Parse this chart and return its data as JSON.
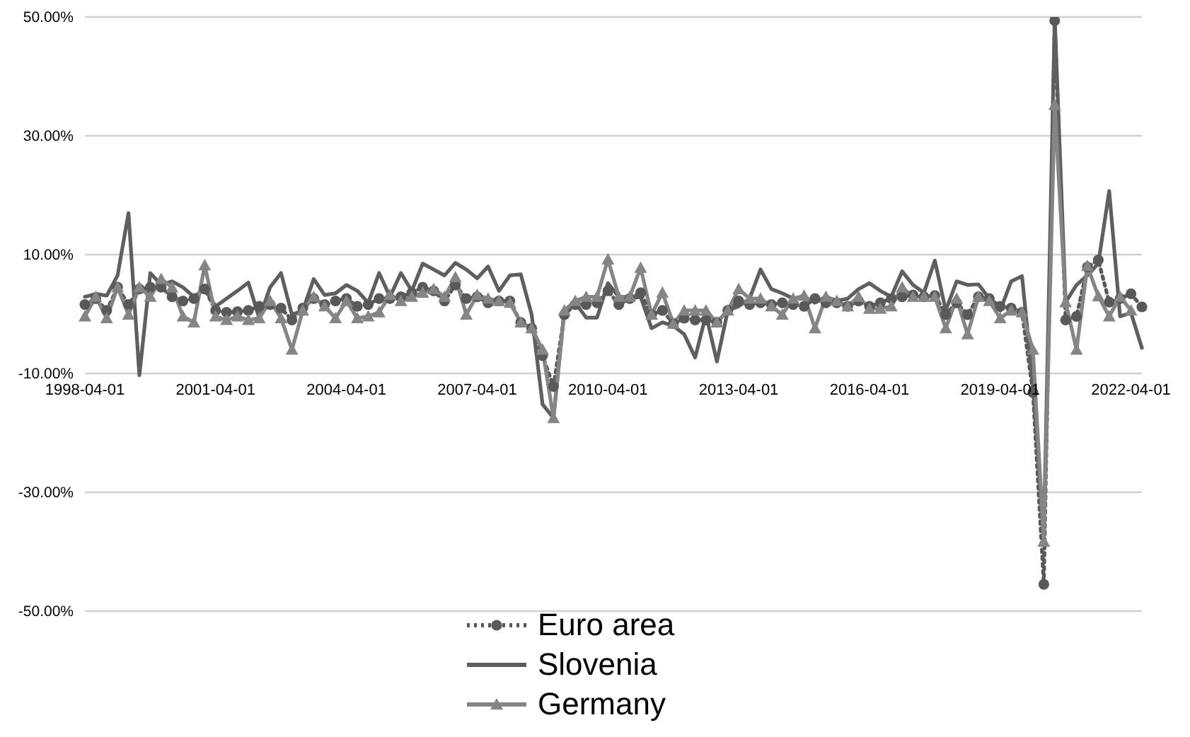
{
  "chart_data": {
    "type": "line",
    "categories": [
      "1998-04-01",
      null,
      null,
      null,
      null,
      null,
      null,
      null,
      null,
      null,
      null,
      null,
      "2001-04-01",
      null,
      null,
      null,
      null,
      null,
      null,
      null,
      null,
      null,
      null,
      null,
      "2004-04-01",
      null,
      null,
      null,
      null,
      null,
      null,
      null,
      null,
      null,
      null,
      null,
      "2007-04-01",
      null,
      null,
      null,
      null,
      null,
      null,
      null,
      null,
      null,
      null,
      null,
      "2010-04-01",
      null,
      null,
      null,
      null,
      null,
      null,
      null,
      null,
      null,
      null,
      null,
      "2013-04-01",
      null,
      null,
      null,
      null,
      null,
      null,
      null,
      null,
      null,
      null,
      null,
      "2016-04-01",
      null,
      null,
      null,
      null,
      null,
      null,
      null,
      null,
      null,
      null,
      null,
      "2019-04-01",
      null,
      null,
      null,
      null,
      null,
      null,
      null,
      null,
      null,
      null,
      null,
      "2022-04-01",
      null
    ],
    "series": [
      {
        "name": "Euro area",
        "color": "#595959",
        "marker": "circle",
        "line_style": "dotted",
        "values": [
          1.6,
          2.6,
          0.6,
          4.5,
          1.6,
          4.2,
          4.5,
          4.5,
          2.9,
          2.2,
          2.6,
          4.2,
          0.6,
          0.3,
          0.4,
          0.6,
          1.3,
          1.6,
          1.0,
          -1.0,
          1.0,
          2.6,
          1.6,
          2.2,
          2.6,
          1.3,
          1.6,
          2.6,
          2.6,
          2.9,
          3.6,
          4.5,
          3.9,
          2.2,
          4.9,
          2.6,
          2.9,
          1.9,
          2.2,
          2.2,
          -1.4,
          -2.4,
          -7.0,
          -12.2,
          -0.1,
          1.6,
          1.6,
          1.9,
          3.9,
          1.6,
          2.6,
          3.6,
          -0.1,
          0.6,
          -1.6,
          -0.7,
          -1.0,
          -1.0,
          -1.4,
          0.6,
          2.2,
          1.6,
          1.9,
          1.6,
          1.9,
          1.6,
          1.3,
          2.6,
          1.9,
          1.9,
          1.3,
          2.2,
          1.3,
          1.9,
          2.6,
          2.9,
          3.2,
          2.9,
          3.1,
          -0.1,
          1.9,
          -0.1,
          2.9,
          2.6,
          1.3,
          1.0,
          0.3,
          -13.2,
          -45.5,
          49.4,
          -1.0,
          -0.4,
          7.9,
          9.1,
          2.0,
          2.6,
          3.4,
          1.2
        ]
      },
      {
        "name": "Slovenia",
        "color": "#5f5f5f",
        "marker": "none",
        "line_style": "solid",
        "values": [
          2.9,
          3.4,
          3.1,
          6.5,
          17,
          -10.3,
          6.9,
          4.9,
          5.5,
          4.5,
          2.9,
          4.2,
          1.3,
          2.6,
          3.9,
          5.3,
          -0.7,
          4.5,
          6.9,
          -0.1,
          0.6,
          5.9,
          3.2,
          3.5,
          4.9,
          3.9,
          1.9,
          6.9,
          2.9,
          6.9,
          3.9,
          8.5,
          7.5,
          6.5,
          8.6,
          7.5,
          6.0,
          8.0,
          3.9,
          6.5,
          6.7,
          -0.1,
          -15.2,
          -17.5,
          0.6,
          1.9,
          -0.6,
          -0.6,
          5.2,
          2.9,
          2.6,
          2.9,
          -2.4,
          -1.4,
          -2.0,
          -3.4,
          -7.3,
          -0.1,
          -8.0,
          0.6,
          1.3,
          2.6,
          7.5,
          4.2,
          3.5,
          2.6,
          2.9,
          1.9,
          2.9,
          2.2,
          2.6,
          4.2,
          5.2,
          3.9,
          2.9,
          7.2,
          4.9,
          3.6,
          9.0,
          0.6,
          5.5,
          4.9,
          5.0,
          2.6,
          0.6,
          5.5,
          6.4,
          -12,
          -37,
          50,
          2.0,
          4.9,
          6.5,
          8.5,
          20.7,
          -0.4,
          0.2,
          -5.7
        ]
      },
      {
        "name": "Germany",
        "color": "#858585",
        "marker": "triangle",
        "line_style": "solid",
        "values": [
          -0.4,
          2.9,
          -0.7,
          4.5,
          -0.1,
          4.5,
          2.9,
          5.9,
          4.5,
          -0.4,
          -1.4,
          8.2,
          -0.4,
          -1.0,
          -0.4,
          -1.0,
          -0.7,
          2.2,
          -0.7,
          -6.0,
          0.6,
          2.9,
          1.3,
          -0.7,
          2.2,
          -0.7,
          -0.4,
          0.3,
          3.2,
          2.2,
          2.9,
          3.6,
          4.2,
          2.9,
          6.2,
          -0.1,
          3.2,
          2.6,
          2.2,
          1.9,
          -1.4,
          -2.4,
          -6.0,
          -17.5,
          0.6,
          2.2,
          2.9,
          2.9,
          9.2,
          2.9,
          2.9,
          7.8,
          -0.1,
          3.6,
          -1.6,
          0.6,
          0.6,
          0.6,
          -1.4,
          0.6,
          4.2,
          2.6,
          2.6,
          1.3,
          -0.1,
          2.6,
          3.1,
          -2.4,
          2.9,
          2.2,
          1.3,
          2.9,
          0.9,
          0.9,
          1.3,
          4.5,
          2.9,
          2.9,
          2.9,
          -2.4,
          2.6,
          -3.4,
          2.9,
          2.2,
          -0.7,
          0.6,
          0.3,
          -6.0,
          -38.3,
          35.2,
          2.0,
          -6.0,
          8.1,
          3.0,
          -0.4,
          2.9,
          0.6,
          null
        ]
      }
    ],
    "ylim": [
      -50,
      50
    ],
    "yticks": [
      {
        "value": -50,
        "label": "-50.00%"
      },
      {
        "value": -30,
        "label": "-30.00%"
      },
      {
        "value": -10,
        "label": "-10.00%"
      },
      {
        "value": 10,
        "label": "10.00%"
      },
      {
        "value": 30,
        "label": "30.00%"
      },
      {
        "value": 50,
        "label": "50.00%"
      }
    ],
    "grid": "y",
    "legend": "bottom"
  }
}
